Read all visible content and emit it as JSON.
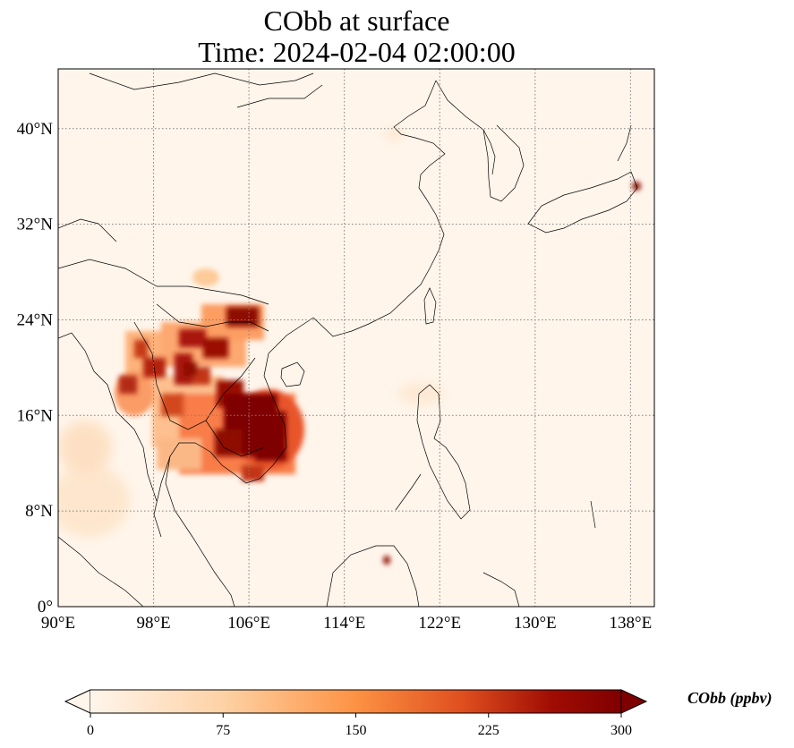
{
  "title_line1": "CObb at surface",
  "title_line2": "Time: 2024-02-04 02:00:00",
  "map": {
    "lon_range": [
      90,
      140
    ],
    "lat_range": [
      0,
      45
    ],
    "x_ticks": [
      "90°E",
      "98°E",
      "106°E",
      "114°E",
      "122°E",
      "130°E",
      "138°E"
    ],
    "y_ticks": [
      "0°",
      "8°N",
      "16°N",
      "24°N",
      "32°N",
      "40°N"
    ],
    "gridlines": true
  },
  "colorbar": {
    "label": "CObb (ppbv)",
    "ticks": [
      "0",
      "75",
      "150",
      "225",
      "300"
    ],
    "range": [
      0,
      300
    ],
    "extend": "both",
    "colormap": [
      "#fff5eb",
      "#fdd2a5",
      "#fd9243",
      "#df4f1f",
      "#a00c03",
      "#7f0000"
    ]
  }
}
